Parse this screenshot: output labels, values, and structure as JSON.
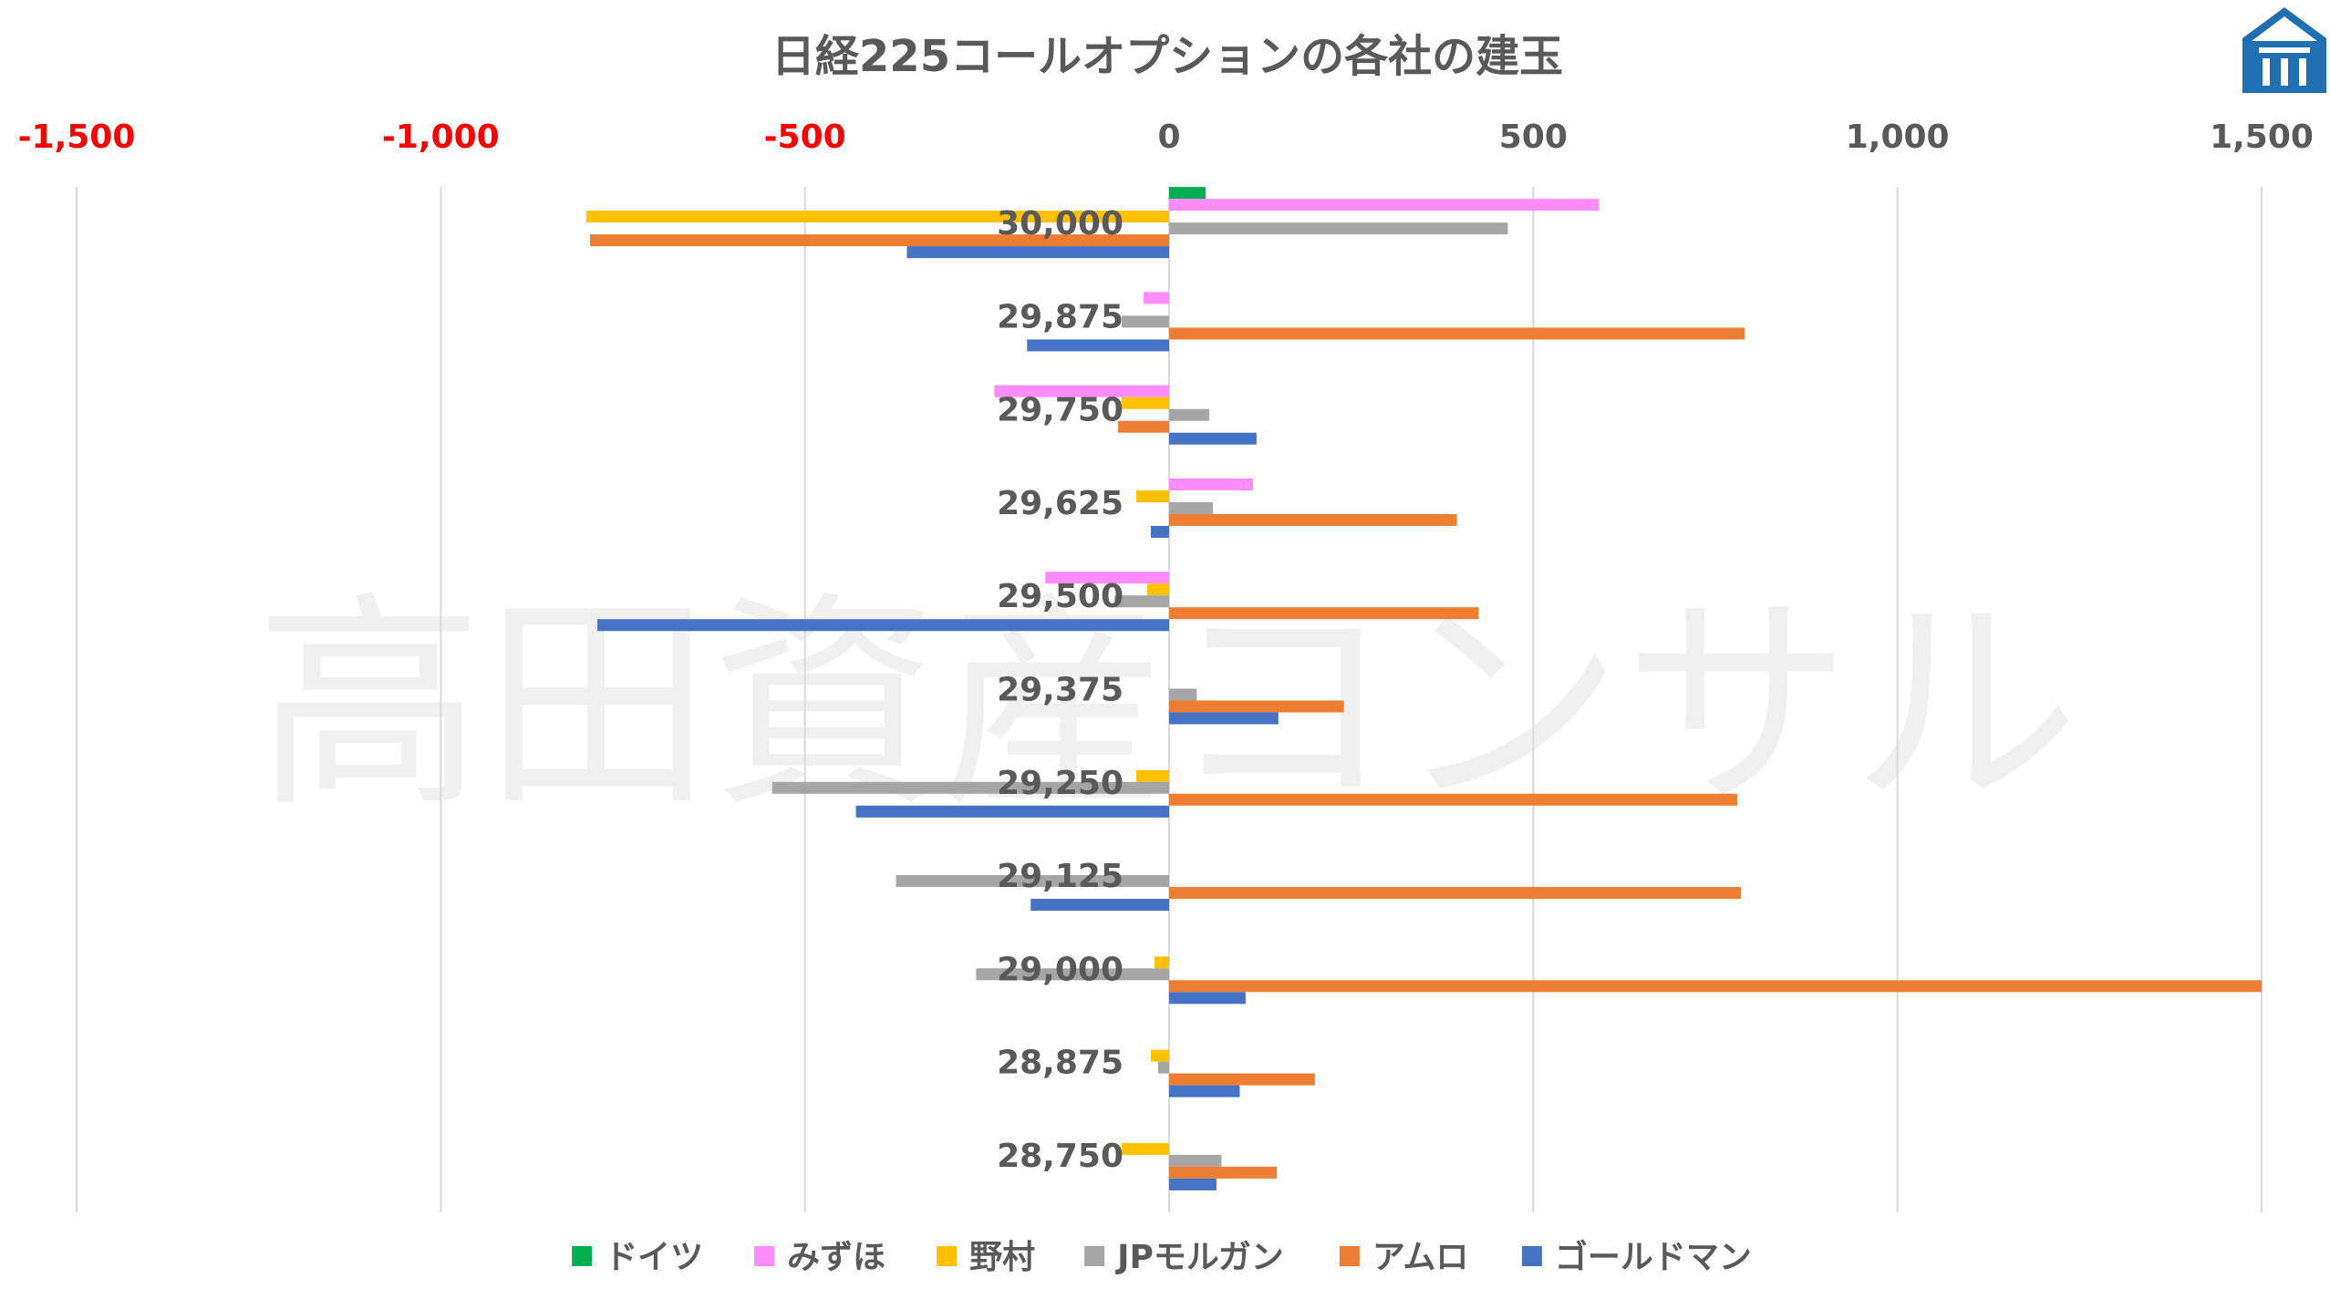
{
  "chart_data": {
    "type": "bar",
    "orientation": "horizontal",
    "title": "日経225コールオプションの各社の建玉",
    "watermark": "高田資産コンサル",
    "categories": [
      "30,000",
      "29,875",
      "29,750",
      "29,625",
      "29,500",
      "29,375",
      "29,250",
      "29,125",
      "29,000",
      "28,875",
      "28,750"
    ],
    "xlim": [
      -1500,
      1500
    ],
    "x_ticks": [
      "-1,500",
      "-1,000",
      "-500",
      "0",
      "500",
      "1,000",
      "1,500"
    ],
    "x_tick_values": [
      -1500,
      -1000,
      -500,
      0,
      500,
      1000,
      1500
    ],
    "negative_tick_color": "#ff0000",
    "positive_tick_color": "#595959",
    "grid": "vertical",
    "legend_position": "bottom",
    "series": [
      {
        "name": "ドイツ",
        "color": "#00b050",
        "values": [
          50,
          0,
          0,
          0,
          0,
          0,
          0,
          0,
          0,
          0,
          0
        ]
      },
      {
        "name": "みずほ",
        "color": "#ff8cff",
        "values": [
          590,
          -35,
          -240,
          115,
          -170,
          0,
          0,
          0,
          0,
          0,
          0
        ]
      },
      {
        "name": "野村",
        "color": "#ffc000",
        "values": [
          -800,
          0,
          -65,
          -45,
          -30,
          0,
          -45,
          0,
          -20,
          -25,
          -65
        ]
      },
      {
        "name": "JPモルガン",
        "color": "#a5a5a5",
        "values": [
          465,
          -65,
          55,
          60,
          -75,
          38,
          -545,
          -375,
          -265,
          -15,
          72
        ]
      },
      {
        "name": "アムロ",
        "color": "#ed7d31",
        "values": [
          -795,
          790,
          -70,
          395,
          425,
          240,
          780,
          785,
          1500,
          200,
          148
        ]
      },
      {
        "name": "ゴールドマン",
        "color": "#4472c4",
        "values": [
          -360,
          -195,
          120,
          -25,
          -785,
          150,
          -430,
          -190,
          105,
          97,
          65
        ]
      }
    ]
  },
  "logo": {
    "name": "company-logo",
    "color": "#1f6fb2"
  }
}
